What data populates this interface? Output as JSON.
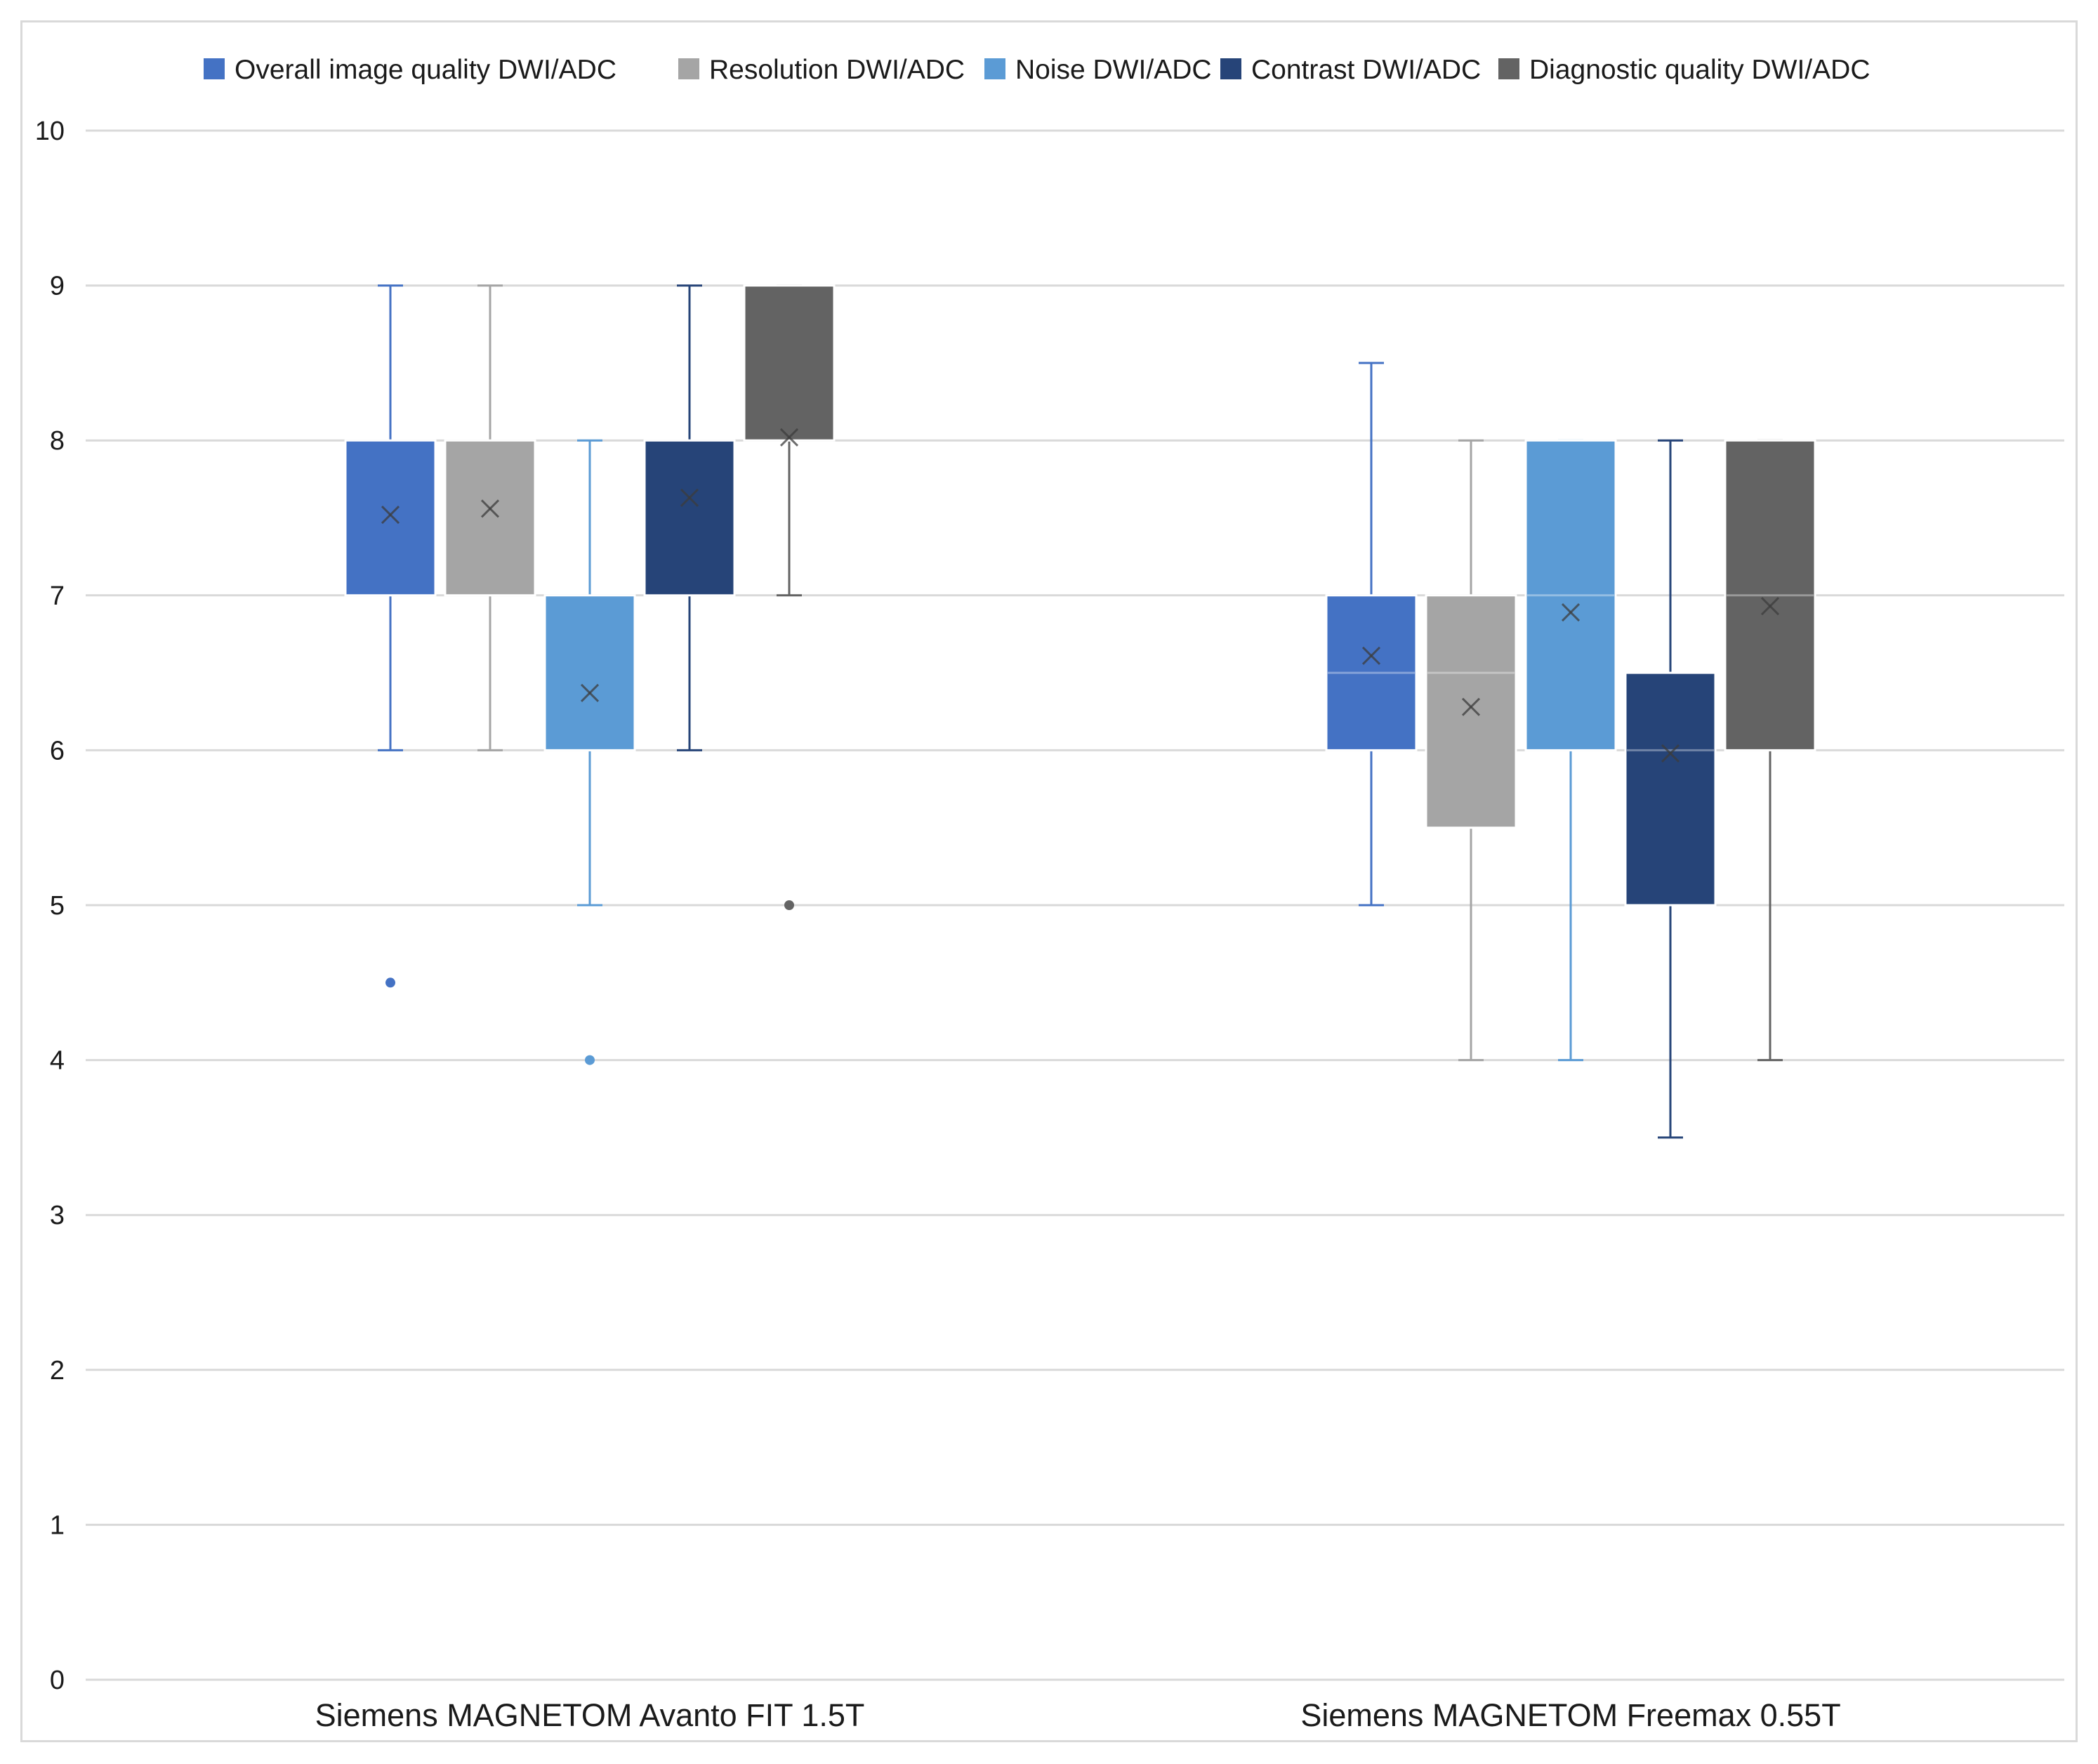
{
  "chart_data": {
    "type": "box",
    "title": "",
    "xlabel": "",
    "ylabel": "",
    "ylim": [
      0,
      10
    ],
    "yticks": [
      "0",
      "1",
      "2",
      "3",
      "4",
      "5",
      "6",
      "7",
      "8",
      "9",
      "10"
    ],
    "grid": true,
    "legend_position": "top",
    "categories": [
      "Siemens MAGNETOM Avanto FIT 1.5T",
      "Siemens  MAGNETOM Freemax 0.55T"
    ],
    "series": [
      {
        "name": "Overall image quality  DWI/ADC",
        "color": "#4472c4",
        "boxes": [
          {
            "min": 6,
            "q1": 7,
            "median": 7,
            "q3": 8,
            "max": 9,
            "mean": 7.52,
            "outliers": [
              4.5
            ]
          },
          {
            "min": 5,
            "q1": 6,
            "median": 6.5,
            "q3": 7,
            "max": 8.5,
            "mean": 6.61,
            "outliers": []
          }
        ]
      },
      {
        "name": "Resolution DWI/ADC",
        "color": "#a5a5a5",
        "boxes": [
          {
            "min": 6,
            "q1": 7,
            "median": 7,
            "q3": 8,
            "max": 9,
            "mean": 7.56,
            "outliers": []
          },
          {
            "min": 4,
            "q1": 5.5,
            "median": 6.5,
            "q3": 7,
            "max": 8,
            "mean": 6.28,
            "outliers": []
          }
        ]
      },
      {
        "name": "Noise DWI/ADC",
        "color": "#5b9bd5",
        "boxes": [
          {
            "min": 5,
            "q1": 6,
            "median": 6,
            "q3": 7,
            "max": 8,
            "mean": 6.37,
            "outliers": [
              4
            ]
          },
          {
            "min": 4,
            "q1": 6,
            "median": 7,
            "q3": 8,
            "max": 8,
            "mean": 6.89,
            "outliers": []
          }
        ]
      },
      {
        "name": "Contrast DWI/ADC",
        "color": "#264478",
        "boxes": [
          {
            "min": 6,
            "q1": 7,
            "median": 8,
            "q3": 8,
            "max": 9,
            "mean": 7.63,
            "outliers": []
          },
          {
            "min": 3.5,
            "q1": 5,
            "median": 6,
            "q3": 6.5,
            "max": 8,
            "mean": 5.98,
            "outliers": []
          }
        ]
      },
      {
        "name": "Diagnostic quality DWI/ADC",
        "color": "#636363",
        "boxes": [
          {
            "min": 7,
            "q1": 8,
            "median": 8,
            "q3": 9,
            "max": 9,
            "mean": 8.02,
            "outliers": [
              5
            ]
          },
          {
            "min": 4,
            "q1": 6,
            "median": 7,
            "q3": 8,
            "max": 8,
            "mean": 6.93,
            "outliers": []
          }
        ]
      }
    ]
  }
}
